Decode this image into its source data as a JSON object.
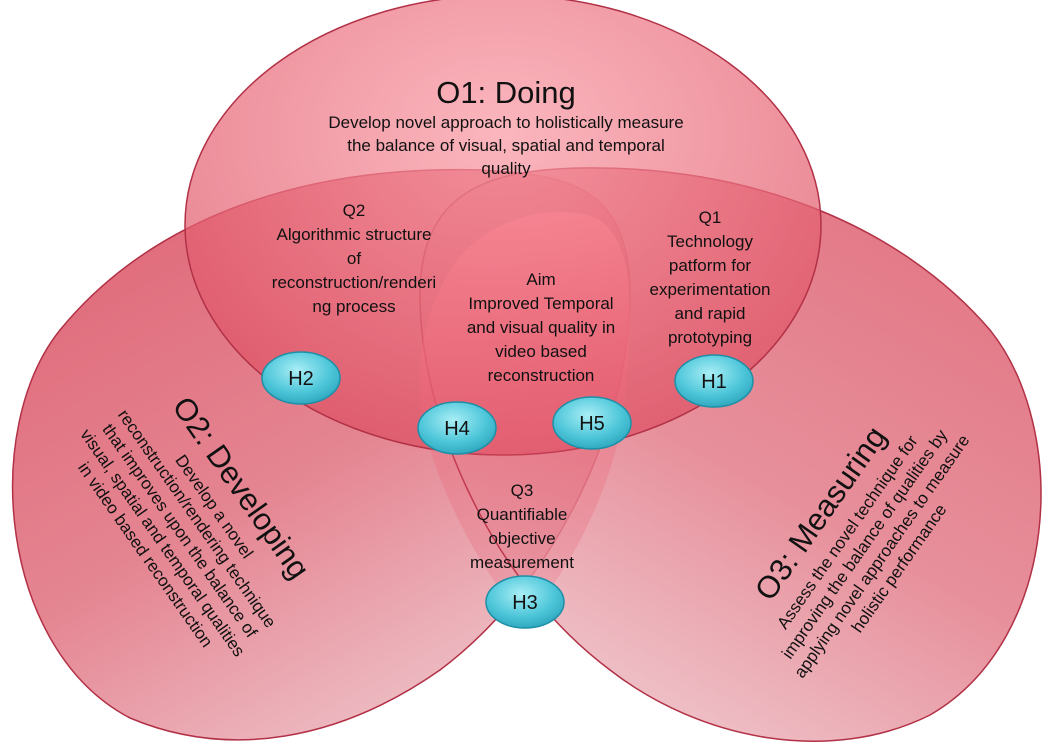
{
  "colors": {
    "circle_fill": "#d94a5c",
    "circle_light": "#f7a8b0",
    "circle_stroke": "#b23146",
    "oval_fill": "#5fd0e0",
    "oval_stroke": "#1d8fa6"
  },
  "o1": {
    "title": "O1: Doing",
    "lines": [
      "Develop novel approach to holistically measure",
      "the balance of visual, spatial and temporal",
      "quality"
    ]
  },
  "o2": {
    "title": "O2: Developing",
    "lines": [
      "Develop a novel",
      "reconstruction/rendering technique",
      "that improves upon the balance of",
      "visual, spatial and temporal qualities",
      "in video based reconstruction"
    ]
  },
  "o3": {
    "title": "O3: Measuring",
    "lines": [
      "Assess the novel technique for",
      "improving the balance of qualities by",
      "applying novel approaches to measure",
      "holistic performance"
    ]
  },
  "q1": {
    "lines": [
      "Q1",
      "Technology",
      "patform for",
      "experimentation",
      "and rapid",
      "prototyping"
    ]
  },
  "q2": {
    "lines": [
      "Q2",
      "Algorithmic structure",
      "of",
      "reconstruction/renderi",
      "ng process"
    ]
  },
  "q3": {
    "lines": [
      "Q3",
      "Quantifiable",
      "objective",
      "measurement"
    ]
  },
  "aim": {
    "lines": [
      "Aim",
      "Improved Temporal",
      "and visual quality in",
      "video based",
      "reconstruction"
    ]
  },
  "hypotheses": {
    "h1": "H1",
    "h2": "H2",
    "h3": "H3",
    "h4": "H4",
    "h5": "H5"
  }
}
